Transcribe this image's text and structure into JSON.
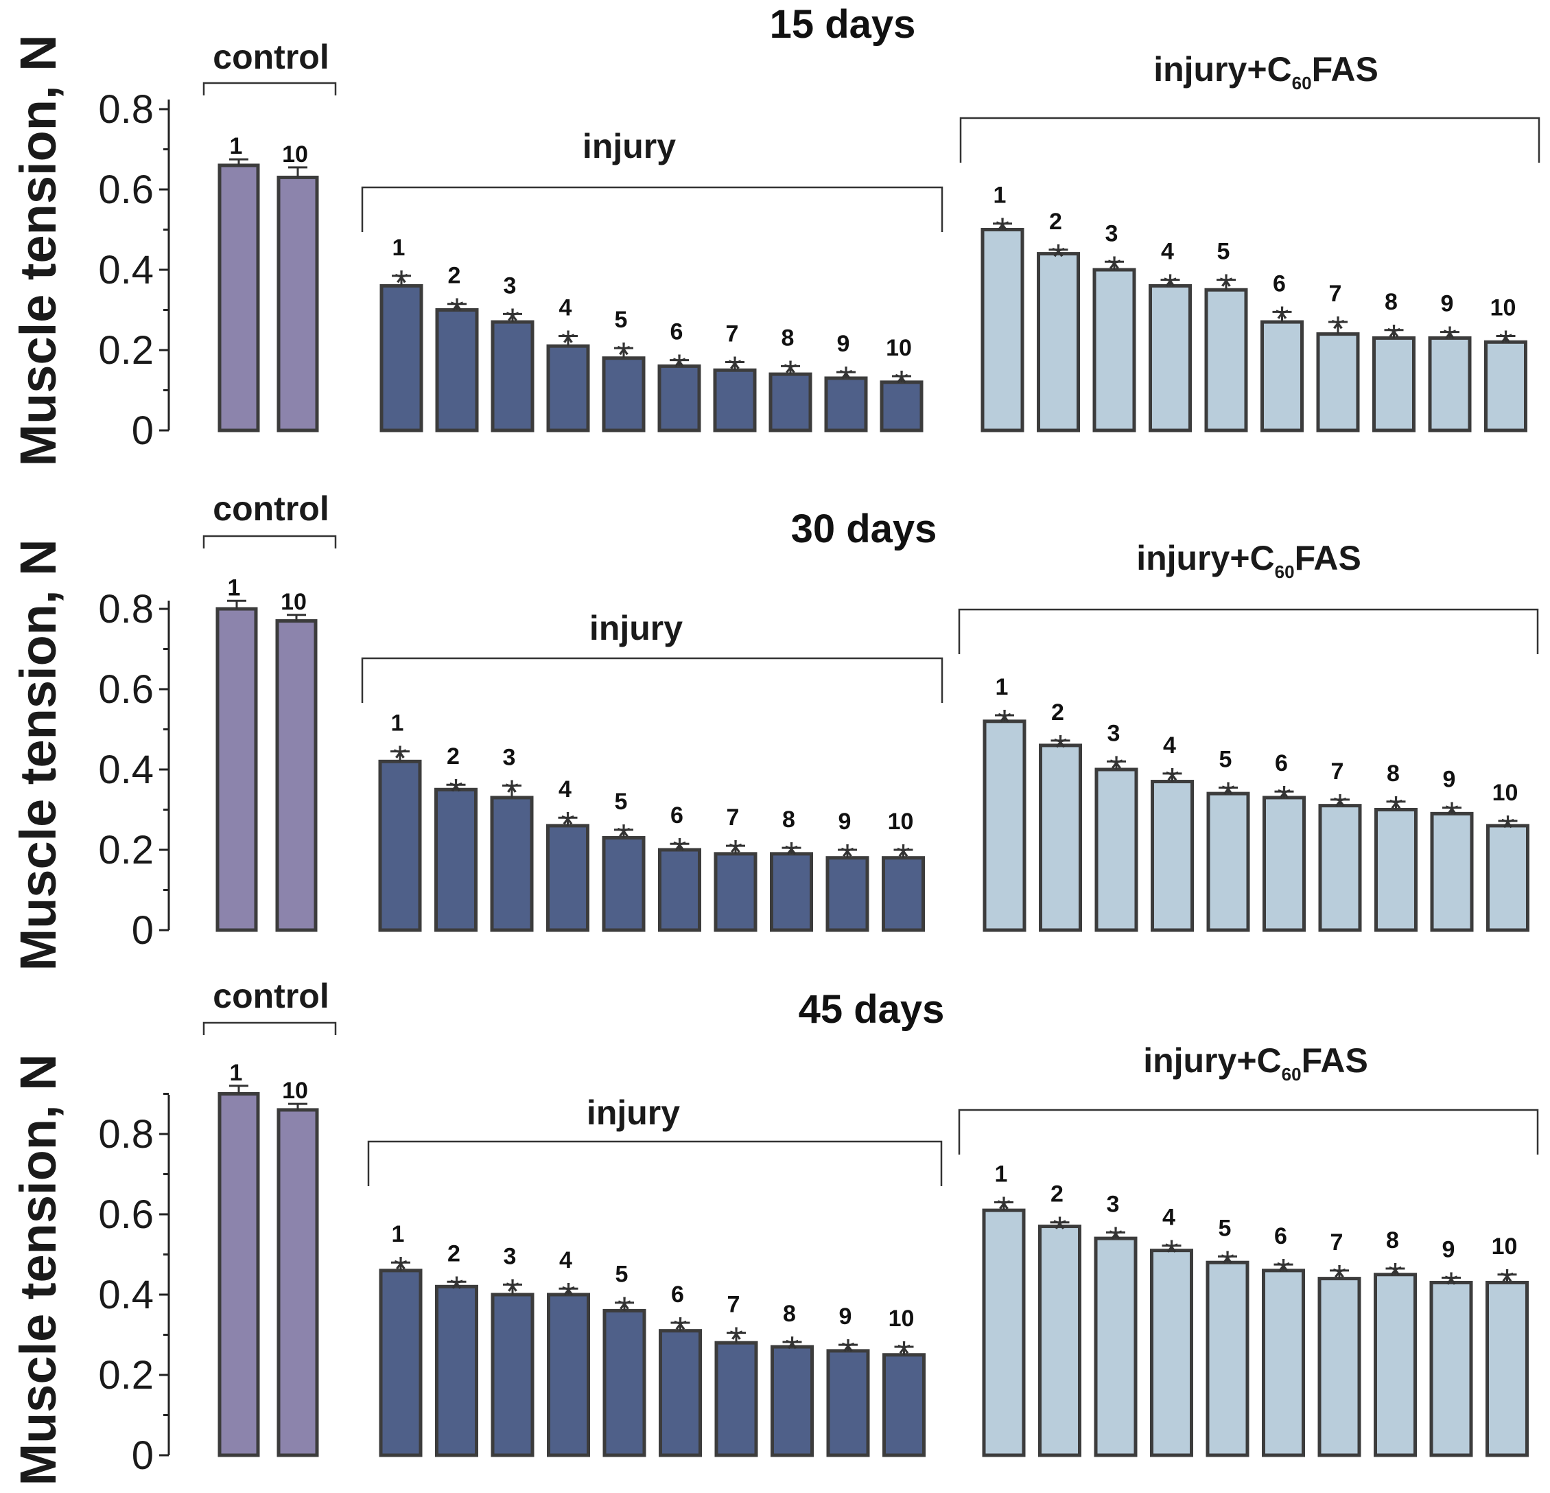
{
  "chart_data": [
    {
      "type": "bar",
      "title": "15 days",
      "ylabel": "Muscle tension, N",
      "ylim": [
        0,
        0.8
      ],
      "yticks": [
        "0",
        "0.2",
        "0.4",
        "0.6",
        "0.8"
      ],
      "significance_marker": "*",
      "groups": [
        {
          "name": "control",
          "categories": [
            "1",
            "10"
          ],
          "values": [
            0.66,
            0.63
          ],
          "errors": [
            0.015,
            0.025
          ],
          "color": "#8c84ac",
          "significant": false
        },
        {
          "name": "injury",
          "categories": [
            "1",
            "2",
            "3",
            "4",
            "5",
            "6",
            "7",
            "8",
            "9",
            "10"
          ],
          "values": [
            0.36,
            0.3,
            0.27,
            0.21,
            0.18,
            0.16,
            0.15,
            0.14,
            0.13,
            0.12
          ],
          "errors": [
            0.025,
            0.015,
            0.02,
            0.025,
            0.025,
            0.015,
            0.02,
            0.02,
            0.015,
            0.015
          ],
          "color": "#4f6089",
          "significant": true
        },
        {
          "name": "injury+C60FAS",
          "name_parts": [
            "injury+C",
            "60",
            "FAS"
          ],
          "categories": [
            "1",
            "2",
            "3",
            "4",
            "5",
            "6",
            "7",
            "8",
            "9",
            "10"
          ],
          "values": [
            0.5,
            0.44,
            0.4,
            0.36,
            0.35,
            0.27,
            0.24,
            0.23,
            0.23,
            0.22
          ],
          "errors": [
            0.015,
            0.01,
            0.02,
            0.015,
            0.025,
            0.025,
            0.03,
            0.02,
            0.015,
            0.015
          ],
          "color": "#b9cddb",
          "significant": true
        }
      ]
    },
    {
      "type": "bar",
      "title": "30 days",
      "ylabel": "Muscle tension, N",
      "ylim": [
        0,
        0.8
      ],
      "yticks": [
        "0",
        "0.2",
        "0.4",
        "0.6",
        "0.8"
      ],
      "significance_marker": "*",
      "groups": [
        {
          "name": "control",
          "categories": [
            "1",
            "10"
          ],
          "values": [
            0.8,
            0.77
          ],
          "errors": [
            0.02,
            0.015
          ],
          "color": "#8c84ac",
          "significant": false
        },
        {
          "name": "injury",
          "categories": [
            "1",
            "2",
            "3",
            "4",
            "5",
            "6",
            "7",
            "8",
            "9",
            "10"
          ],
          "values": [
            0.42,
            0.35,
            0.33,
            0.26,
            0.23,
            0.2,
            0.19,
            0.19,
            0.18,
            0.18
          ],
          "errors": [
            0.025,
            0.012,
            0.03,
            0.02,
            0.02,
            0.015,
            0.02,
            0.015,
            0.02,
            0.02
          ],
          "color": "#4f6089",
          "significant": true
        },
        {
          "name": "injury+C60FAS",
          "name_parts": [
            "injury+C",
            "60",
            "FAS"
          ],
          "categories": [
            "1",
            "2",
            "3",
            "4",
            "5",
            "6",
            "7",
            "8",
            "9",
            "10"
          ],
          "values": [
            0.52,
            0.46,
            0.4,
            0.37,
            0.34,
            0.33,
            0.31,
            0.3,
            0.29,
            0.26
          ],
          "errors": [
            0.015,
            0.012,
            0.02,
            0.02,
            0.015,
            0.015,
            0.015,
            0.02,
            0.015,
            0.012
          ],
          "color": "#b9cddb",
          "significant": true
        }
      ]
    },
    {
      "type": "bar",
      "title": "45 days",
      "ylabel": "Muscle tension, N",
      "ylim": [
        0,
        0.9
      ],
      "yticks": [
        "0",
        "0.2",
        "0.4",
        "0.6",
        "0.8"
      ],
      "significance_marker": "*",
      "groups": [
        {
          "name": "control",
          "categories": [
            "1",
            "10"
          ],
          "values": [
            0.9,
            0.86
          ],
          "errors": [
            0.02,
            0.015
          ],
          "color": "#8c84ac",
          "significant": false
        },
        {
          "name": "injury",
          "categories": [
            "1",
            "2",
            "3",
            "4",
            "5",
            "6",
            "7",
            "8",
            "9",
            "10"
          ],
          "values": [
            0.46,
            0.42,
            0.4,
            0.4,
            0.36,
            0.31,
            0.28,
            0.27,
            0.26,
            0.25
          ],
          "errors": [
            0.02,
            0.012,
            0.025,
            0.015,
            0.02,
            0.02,
            0.025,
            0.012,
            0.015,
            0.02
          ],
          "color": "#4f6089",
          "significant": true
        },
        {
          "name": "injury+C60FAS",
          "name_parts": [
            "injury+C",
            "60",
            "FAS"
          ],
          "categories": [
            "1",
            "2",
            "3",
            "4",
            "5",
            "6",
            "7",
            "8",
            "9",
            "10"
          ],
          "values": [
            0.61,
            0.57,
            0.54,
            0.51,
            0.48,
            0.46,
            0.44,
            0.45,
            0.43,
            0.43
          ],
          "errors": [
            0.02,
            0.01,
            0.015,
            0.012,
            0.015,
            0.015,
            0.02,
            0.015,
            0.012,
            0.02
          ],
          "color": "#b9cddb",
          "significant": true
        }
      ]
    }
  ]
}
